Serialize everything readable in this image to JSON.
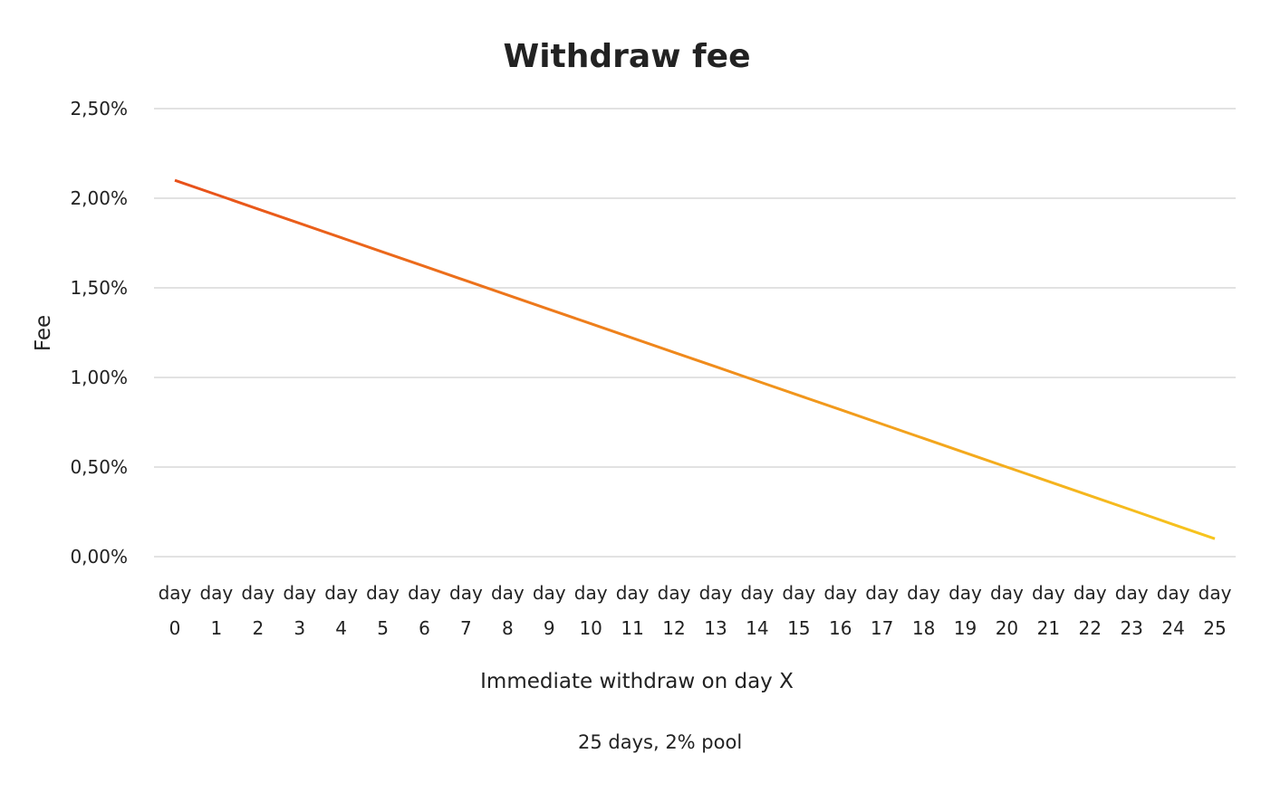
{
  "chart_data": {
    "type": "line",
    "title": "Withdraw fee",
    "xlabel": "Immediate withdraw on day X",
    "ylabel": "Fee",
    "ylim": [
      0,
      2.5
    ],
    "y_ticks": [
      "0,00%",
      "0,50%",
      "1,00%",
      "1,50%",
      "2,00%",
      "2,50%"
    ],
    "y_tick_values": [
      0,
      0.5,
      1.0,
      1.5,
      2.0,
      2.5
    ],
    "categories": [
      [
        "day",
        "0"
      ],
      [
        "day",
        "1"
      ],
      [
        "day",
        "2"
      ],
      [
        "day",
        "3"
      ],
      [
        "day",
        "4"
      ],
      [
        "day",
        "5"
      ],
      [
        "day",
        "6"
      ],
      [
        "day",
        "7"
      ],
      [
        "day",
        "8"
      ],
      [
        "day",
        "9"
      ],
      [
        "day",
        "10"
      ],
      [
        "day",
        "11"
      ],
      [
        "day",
        "12"
      ],
      [
        "day",
        "13"
      ],
      [
        "day",
        "14"
      ],
      [
        "day",
        "15"
      ],
      [
        "day",
        "16"
      ],
      [
        "day",
        "17"
      ],
      [
        "day",
        "18"
      ],
      [
        "day",
        "19"
      ],
      [
        "day",
        "20"
      ],
      [
        "day",
        "21"
      ],
      [
        "day",
        "22"
      ],
      [
        "day",
        "23"
      ],
      [
        "day",
        "24"
      ],
      [
        "day",
        "25"
      ]
    ],
    "series": [
      {
        "name": "25 days, 2% pool",
        "values": [
          2.1,
          2.02,
          1.94,
          1.86,
          1.78,
          1.7,
          1.62,
          1.54,
          1.46,
          1.38,
          1.3,
          1.22,
          1.14,
          1.06,
          0.98,
          0.9,
          0.82,
          0.74,
          0.66,
          0.58,
          0.5,
          0.42,
          0.34,
          0.26,
          0.18,
          0.1
        ],
        "color_start": "#e8501a",
        "color_end": "#f7c51e"
      }
    ],
    "grid": true,
    "legend_position": "bottom"
  }
}
